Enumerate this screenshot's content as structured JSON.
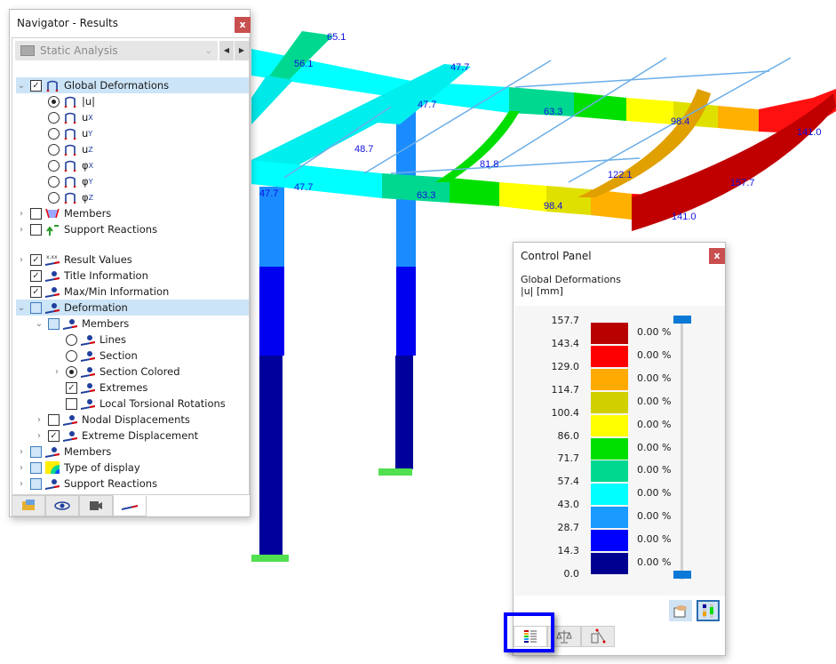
{
  "navigator": {
    "title": "Navigator - Results",
    "close_label": "x",
    "combo": {
      "value": "Static Analysis"
    },
    "tree": [
      {
        "label": "Global Deformations",
        "checked": true,
        "expanded": true,
        "selected": true
      },
      {
        "label": "|u|",
        "radio": true,
        "on": true
      },
      {
        "label": "u",
        "sub": "X",
        "radio": true
      },
      {
        "label": "u",
        "sub": "Y",
        "radio": true
      },
      {
        "label": "u",
        "sub": "Z",
        "radio": true
      },
      {
        "label": "φ",
        "sub": "X",
        "radio": true
      },
      {
        "label": "φ",
        "sub": "Y",
        "radio": true
      },
      {
        "label": "φ",
        "sub": "Z",
        "radio": true
      },
      {
        "label": "Members",
        "checked": false
      },
      {
        "label": "Support Reactions",
        "checked": false
      },
      {
        "label": "Result Values",
        "checked": true,
        "icon_text": "x.xx"
      },
      {
        "label": "Title Information",
        "checked": true
      },
      {
        "label": "Max/Min Information",
        "checked": true
      },
      {
        "label": "Deformation",
        "partial": true,
        "expanded": true,
        "selected": true
      },
      {
        "label": "Members",
        "partial": true,
        "expanded": true
      },
      {
        "label": "Lines",
        "radio": true
      },
      {
        "label": "Section",
        "radio": true
      },
      {
        "label": "Section Colored",
        "radio": true,
        "on": true
      },
      {
        "label": "Extremes",
        "checked": true
      },
      {
        "label": "Local Torsional Rotations",
        "checked": false
      },
      {
        "label": "Nodal Displacements",
        "checked": false
      },
      {
        "label": "Extreme Displacement",
        "checked": true
      },
      {
        "label": "Members",
        "partial": true
      },
      {
        "label": "Type of display",
        "partial": true
      },
      {
        "label": "Support Reactions",
        "partial": true
      }
    ],
    "tabs": [
      "data-icon",
      "eye-icon",
      "camera-icon",
      "results-icon"
    ]
  },
  "control_panel": {
    "title": "Control Panel",
    "close_label": "x",
    "heading": "Global Deformations",
    "unit": "|u| [mm]",
    "scale_values": [
      "157.7",
      "143.4",
      "129.0",
      "114.7",
      "100.4",
      "86.0",
      "71.7",
      "57.4",
      "43.0",
      "28.7",
      "14.3",
      "0.0"
    ],
    "colors": [
      "#b90000",
      "#ff0000",
      "#ffaa00",
      "#d0d000",
      "#ffff00",
      "#00e000",
      "#00d890",
      "#00ffff",
      "#1a9bff",
      "#0000ff",
      "#000090"
    ],
    "percents": [
      "0.00 %",
      "0.00 %",
      "0.00 %",
      "0.00 %",
      "0.00 %",
      "0.00 %",
      "0.00 %",
      "0.00 %",
      "0.00 %",
      "0.00 %",
      "0.00 %"
    ],
    "tabs": [
      "color-scale-icon",
      "balance-icon",
      "settings-icon"
    ]
  },
  "model_labels": [
    "65.1",
    "56.1",
    "47.7",
    "47.7",
    "63.3",
    "48.7",
    "81.8",
    "98.4",
    "122.1",
    "141.0",
    "157.7",
    "141.0",
    "98.4",
    "63.3",
    "47.7",
    "47.7"
  ]
}
